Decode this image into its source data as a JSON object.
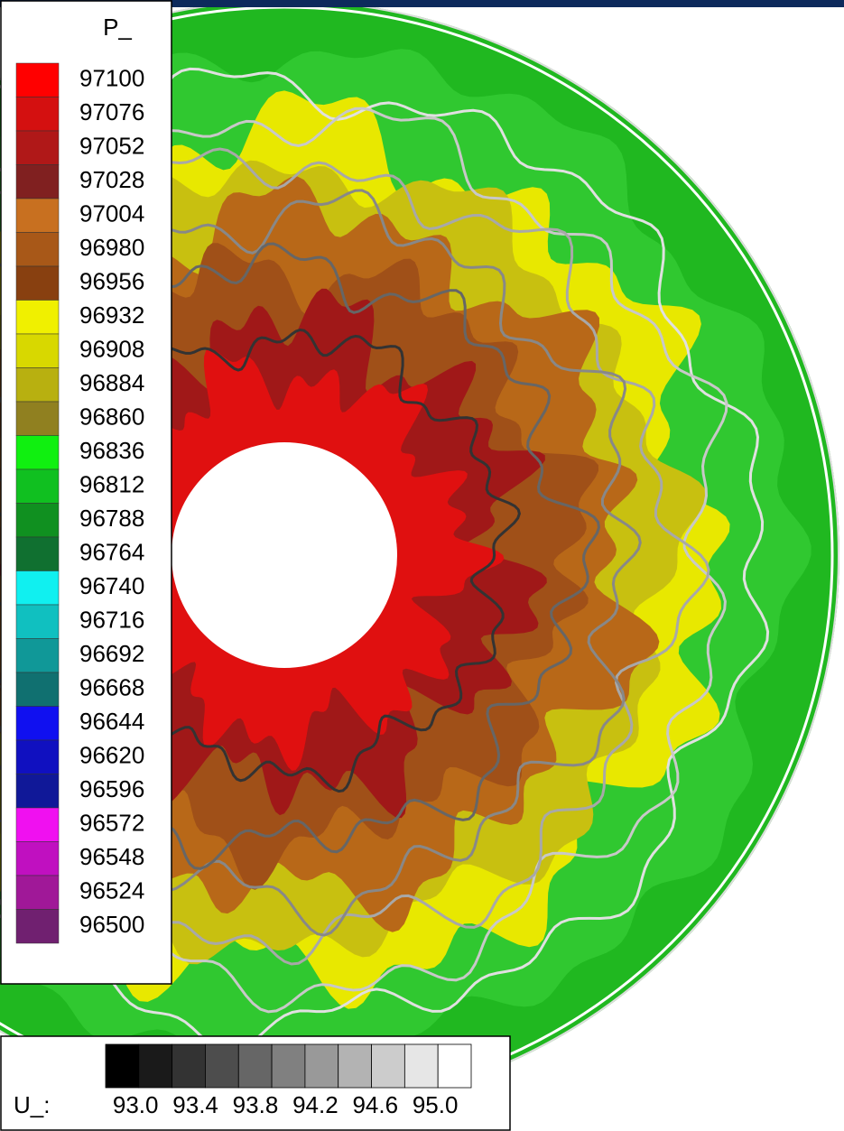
{
  "chart_data": {
    "type": "contour",
    "colorbar": {
      "title": "P_",
      "levels": [
        97100,
        97076,
        97052,
        97028,
        97004,
        96980,
        96956,
        96932,
        96908,
        96884,
        96860,
        96836,
        96812,
        96788,
        96764,
        96740,
        96716,
        96692,
        96668,
        96644,
        96620,
        96596,
        96572,
        96548,
        96524,
        96500
      ],
      "colors": [
        "#ff0000",
        "#d41010",
        "#b01818",
        "#802020",
        "#c87020",
        "#a85818",
        "#884010",
        "#f0f000",
        "#d8d800",
        "#b8b010",
        "#908020",
        "#10f010",
        "#10c020",
        "#109020",
        "#107030",
        "#10f0f0",
        "#10c0c0",
        "#109898",
        "#107070",
        "#1010f0",
        "#1010c0",
        "#101898",
        "#f010f0",
        "#c010c0",
        "#a01898",
        "#702070"
      ]
    },
    "line_legend": {
      "label": "U_:",
      "xlim": [
        92.8,
        95.24
      ],
      "xticks": [
        {
          "value": 93.0,
          "label": "93.0"
        },
        {
          "value": 93.4,
          "label": "93.4"
        },
        {
          "value": 93.8,
          "label": "93.8"
        },
        {
          "value": 94.2,
          "label": "94.2"
        },
        {
          "value": 94.6,
          "label": "94.6"
        },
        {
          "value": 95.0,
          "label": "95.0"
        }
      ],
      "colors": [
        "#000000",
        "#1a1a1a",
        "#333333",
        "#4d4d4d",
        "#666666",
        "#808080",
        "#999999",
        "#b3b3b3",
        "#cccccc",
        "#e6e6e6",
        "#ffffff"
      ]
    }
  }
}
